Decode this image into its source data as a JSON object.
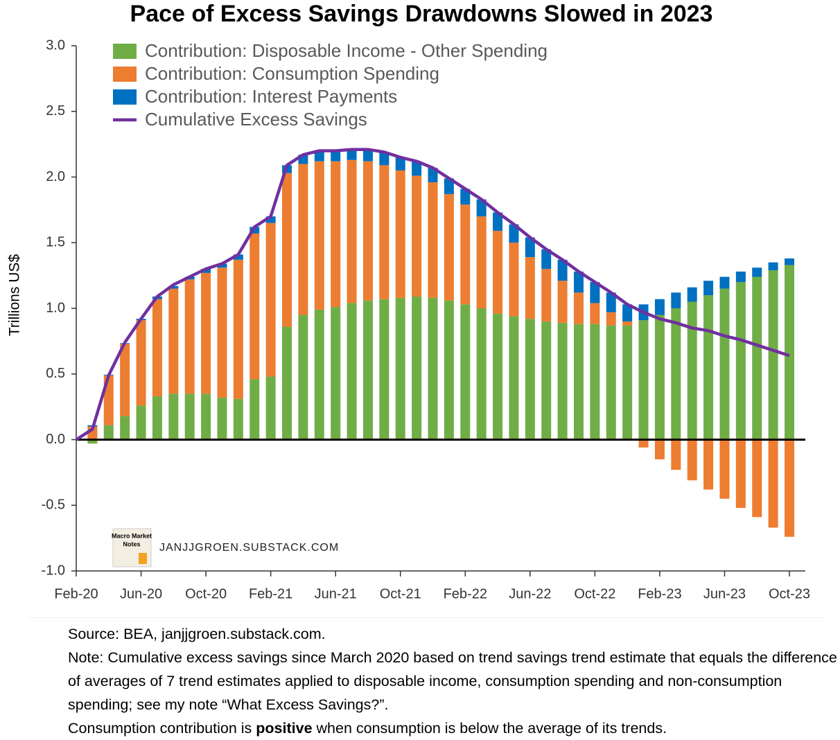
{
  "chart_data": {
    "type": "stacked-bar-line",
    "title": "Pace of Excess Savings Drawdowns Slowed in 2023",
    "y_label": "Trillions US$",
    "categories": [
      "Feb-20",
      null,
      null,
      null,
      "Jun-20",
      null,
      null,
      null,
      "Oct-20",
      null,
      null,
      null,
      "Feb-21",
      null,
      null,
      null,
      "Jun-21",
      null,
      null,
      null,
      "Oct-21",
      null,
      null,
      null,
      "Feb-22",
      null,
      null,
      null,
      "Jun-22",
      null,
      null,
      null,
      "Oct-22",
      null,
      null,
      null,
      "Feb-23",
      null,
      null,
      null,
      "Jun-23",
      null,
      null,
      null,
      "Oct-23"
    ],
    "series": [
      {
        "name": "Contribution: Disposable Income - Other Spending",
        "type": "bar",
        "color": "#70ad47",
        "values": [
          null,
          -0.03,
          0.11,
          0.18,
          0.26,
          0.33,
          0.35,
          0.35,
          0.35,
          0.32,
          0.31,
          0.46,
          0.48,
          0.86,
          0.95,
          0.99,
          1.01,
          1.04,
          1.06,
          1.07,
          1.08,
          1.09,
          1.08,
          1.06,
          1.03,
          1.0,
          0.96,
          0.94,
          0.92,
          0.9,
          0.89,
          0.88,
          0.88,
          0.87,
          0.87,
          0.91,
          0.95,
          1.0,
          1.05,
          1.1,
          1.15,
          1.2,
          1.24,
          1.29,
          1.33
        ]
      },
      {
        "name": "Contribution: Consumption Spending",
        "type": "bar",
        "color": "#ed7d31",
        "values": [
          null,
          0.1,
          0.38,
          0.55,
          0.65,
          0.74,
          0.8,
          0.87,
          0.92,
          0.99,
          1.06,
          1.11,
          1.17,
          1.17,
          1.15,
          1.13,
          1.11,
          1.09,
          1.06,
          1.02,
          0.97,
          0.92,
          0.88,
          0.81,
          0.76,
          0.7,
          0.63,
          0.56,
          0.47,
          0.4,
          0.32,
          0.24,
          0.16,
          0.1,
          0.03,
          -0.06,
          -0.15,
          -0.23,
          -0.31,
          -0.38,
          -0.45,
          -0.52,
          -0.59,
          -0.67,
          -0.74
        ]
      },
      {
        "name": "Contribution: Interest Payments",
        "type": "bar",
        "color": "#0070c0",
        "values": [
          null,
          0.01,
          0.005,
          0.005,
          0.01,
          0.02,
          0.02,
          0.02,
          0.03,
          0.03,
          0.04,
          0.05,
          0.05,
          0.06,
          0.07,
          0.08,
          0.08,
          0.08,
          0.09,
          0.1,
          0.1,
          0.11,
          0.11,
          0.12,
          0.12,
          0.13,
          0.14,
          0.14,
          0.15,
          0.15,
          0.16,
          0.16,
          0.16,
          0.15,
          0.13,
          0.12,
          0.12,
          0.12,
          0.11,
          0.11,
          0.09,
          0.08,
          0.07,
          0.06,
          0.05
        ]
      },
      {
        "name": "Cumulative Excess Savings",
        "type": "line",
        "color": "#7030a0",
        "values": [
          0,
          0.08,
          0.49,
          0.74,
          0.92,
          1.09,
          1.18,
          1.24,
          1.3,
          1.34,
          1.41,
          1.62,
          1.7,
          2.09,
          2.17,
          2.2,
          2.2,
          2.21,
          2.21,
          2.19,
          2.15,
          2.12,
          2.07,
          1.99,
          1.91,
          1.83,
          1.73,
          1.64,
          1.54,
          1.45,
          1.37,
          1.28,
          1.2,
          1.12,
          1.03,
          0.97,
          0.92,
          0.89,
          0.85,
          0.83,
          0.79,
          0.76,
          0.72,
          0.68,
          0.64
        ]
      }
    ],
    "ylim": [
      -1,
      3
    ],
    "yticks": [
      {
        "value": -1,
        "label": "-1.0"
      },
      -0.5,
      {
        "value": 0,
        "label": "0.0"
      },
      0.5,
      {
        "value": 1,
        "label": "1.0"
      },
      1.5,
      {
        "value": 2,
        "label": "2.0"
      },
      2.5,
      {
        "value": 3,
        "label": "3.0"
      }
    ],
    "legend": "upper left",
    "watermark": "JANJJGROEN.SUBSTACK.COM",
    "logo": [
      "Macro Market",
      "Notes"
    ],
    "source": "Source: BEA, janjjgroen.substack.com.",
    "note": "Note: Cumulative excess savings since March 2020 based on trend savings trend estimate that equals the difference of averages of 7 trend estimates applied to disposable income, consumption spending and non-consumption spending; see my note “What Excess Savings?”.",
    "note2": [
      "Consumption contribution is ",
      "positive",
      " when consumption is below the average of its trends."
    ]
  }
}
